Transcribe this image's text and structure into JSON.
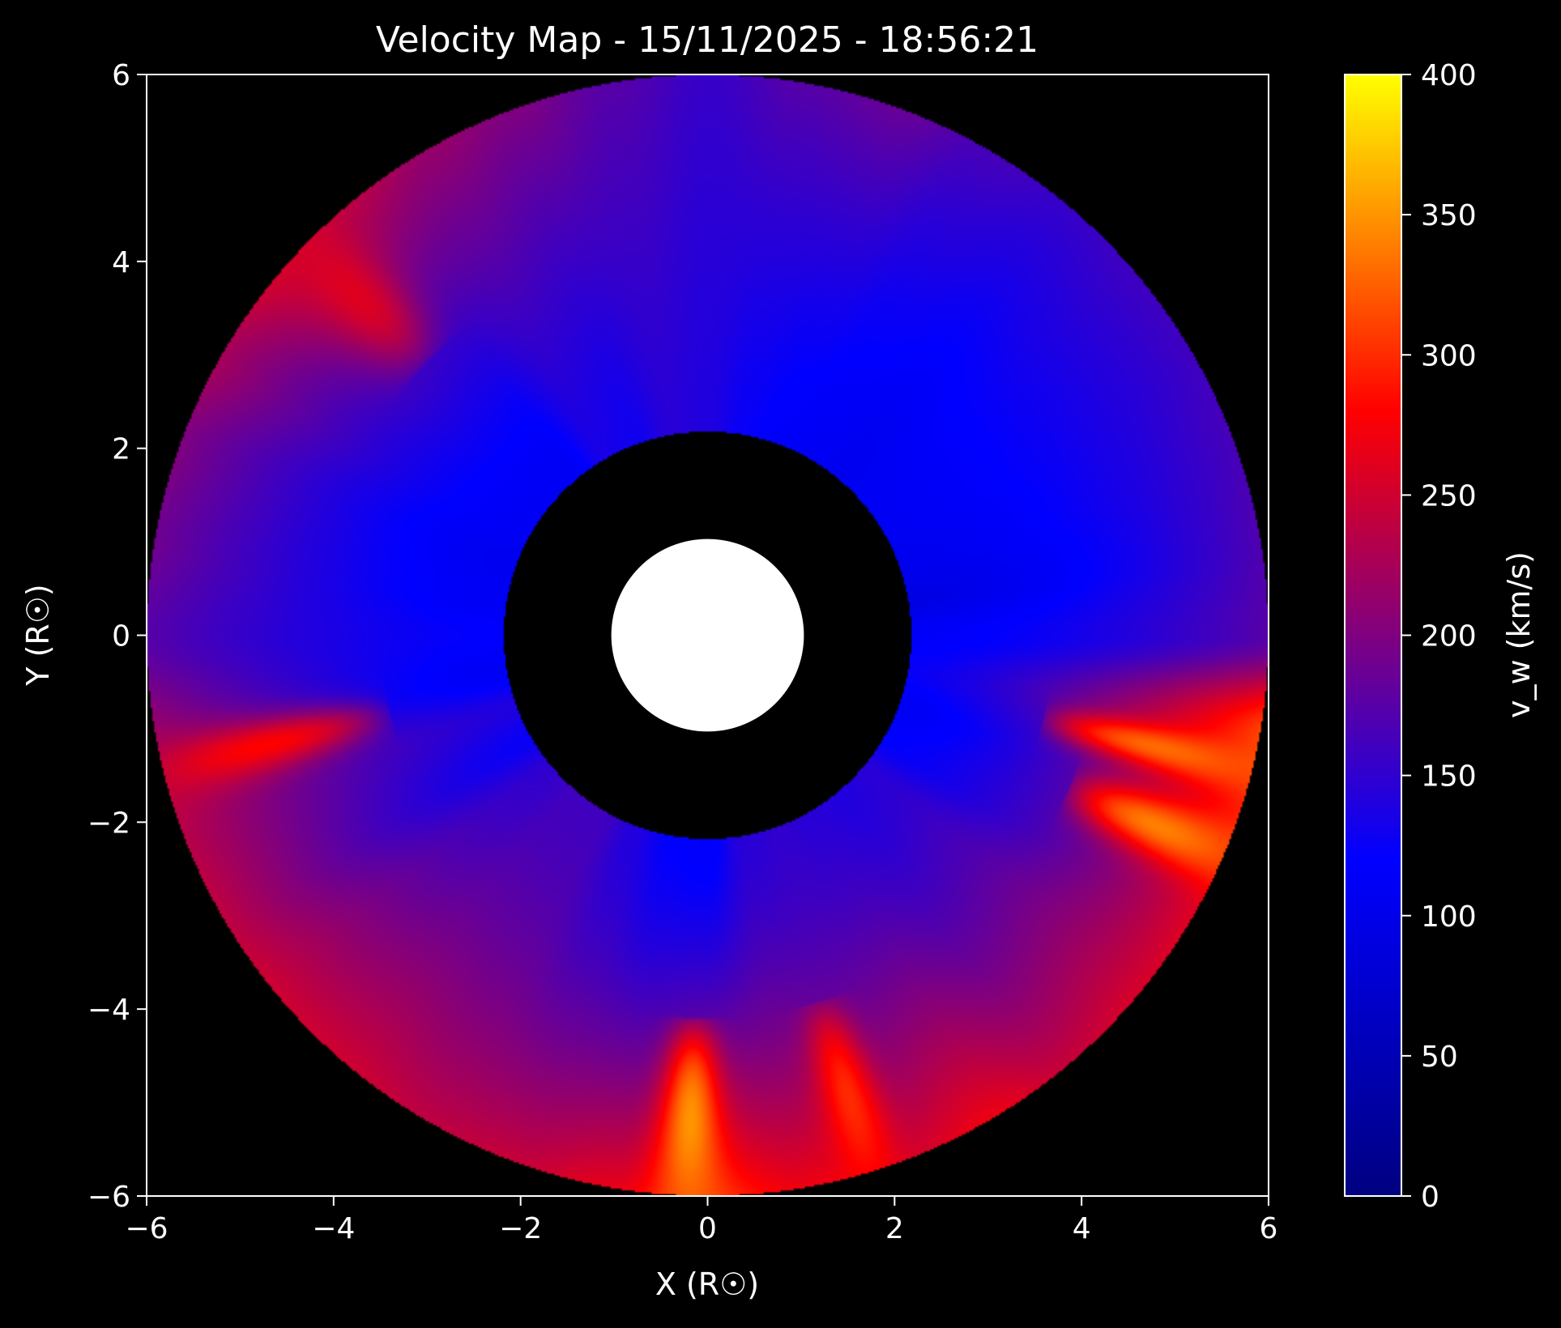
{
  "chart_data": {
    "type": "heatmap",
    "title": "Velocity Map - 15/11/2025 - 18:56:21",
    "xlabel": "X (R☉)",
    "ylabel": "Y (R☉)",
    "xlim": [
      -6,
      6
    ],
    "ylim": [
      -6,
      6
    ],
    "x_ticks": [
      -6,
      -4,
      -2,
      0,
      2,
      4,
      6
    ],
    "y_ticks": [
      -6,
      -4,
      -2,
      0,
      2,
      4,
      6
    ],
    "x_tick_labels": [
      "−6",
      "−4",
      "−2",
      "0",
      "2",
      "4",
      "6"
    ],
    "y_tick_labels": [
      "−6",
      "−4",
      "−2",
      "0",
      "2",
      "4",
      "6"
    ],
    "grid": false,
    "background": "#000000",
    "geometry": {
      "sun_radius": 1.03,
      "inner_radius": 2.18,
      "outer_radius": 6.0
    },
    "colorbar": {
      "label": "v_w (km/s)",
      "range": [
        0,
        400
      ],
      "ticks": [
        0,
        50,
        100,
        150,
        200,
        250,
        300,
        350,
        400
      ],
      "tick_labels": [
        "0",
        "50",
        "100",
        "150",
        "200",
        "250",
        "300",
        "350",
        "400"
      ],
      "colors": [
        "#000080",
        "#0000ff",
        "#ff0000",
        "#ffff00"
      ],
      "color_positions": [
        0,
        0.3,
        0.7,
        1.0
      ]
    },
    "velocity_profile": {
      "angles_deg": [
        0,
        10,
        20,
        30,
        40,
        50,
        60,
        70,
        80,
        90,
        100,
        110,
        120,
        130,
        140,
        150,
        160,
        170,
        180,
        190,
        200,
        210,
        220,
        230,
        240,
        250,
        260,
        270,
        280,
        290,
        300,
        310,
        320,
        330,
        340,
        350
      ],
      "inner_values": [
        115,
        95,
        105,
        110,
        110,
        105,
        110,
        115,
        125,
        140,
        145,
        130,
        135,
        110,
        110,
        110,
        105,
        110,
        120,
        110,
        140,
        125,
        150,
        160,
        160,
        140,
        120,
        115,
        145,
        150,
        145,
        140,
        145,
        120,
        110,
        125
      ],
      "outer_values": [
        175,
        170,
        165,
        160,
        160,
        155,
        165,
        185,
        175,
        155,
        175,
        200,
        215,
        235,
        250,
        225,
        200,
        190,
        175,
        210,
        235,
        240,
        250,
        250,
        240,
        245,
        265,
        300,
        270,
        250,
        270,
        245,
        255,
        260,
        285,
        310
      ]
    },
    "hotspots": [
      {
        "angle_deg": 268,
        "width_deg": 5,
        "r_min": 4.4,
        "r_max": 6.0,
        "peak_value": 350
      },
      {
        "angle_deg": 287,
        "width_deg": 5,
        "r_min": 4.4,
        "r_max": 6.0,
        "peak_value": 300
      },
      {
        "angle_deg": 337,
        "width_deg": 5,
        "r_min": 4.5,
        "r_max": 6.0,
        "peak_value": 340
      },
      {
        "angle_deg": 346,
        "width_deg": 4,
        "r_min": 4.0,
        "r_max": 6.0,
        "peak_value": 330
      },
      {
        "angle_deg": 194,
        "width_deg": 5,
        "r_min": 3.8,
        "r_max": 6.0,
        "peak_value": 280
      },
      {
        "angle_deg": 136,
        "width_deg": 7,
        "r_min": 4.5,
        "r_max": 6.0,
        "peak_value": 260
      }
    ]
  }
}
